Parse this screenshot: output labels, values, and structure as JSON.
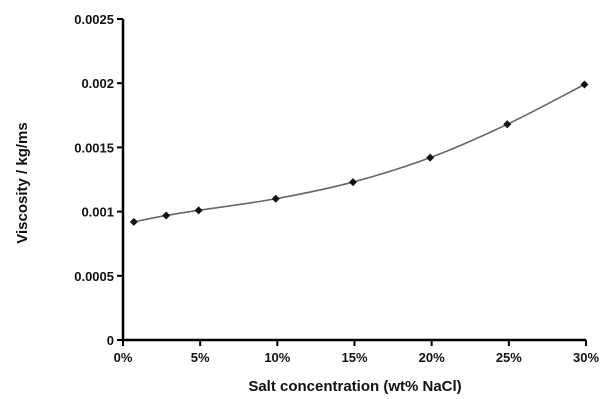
{
  "chart_data": {
    "type": "line",
    "title": "",
    "xlabel": "Salt concentration (wt% NaCl)",
    "ylabel": "Viscosity / kg/ms",
    "xlim": [
      0,
      30
    ],
    "ylim": [
      0,
      0.0025
    ],
    "x_ticks": [
      {
        "value": 0,
        "label": "0%"
      },
      {
        "value": 5,
        "label": "5%"
      },
      {
        "value": 10,
        "label": "10%"
      },
      {
        "value": 15,
        "label": "15%"
      },
      {
        "value": 20,
        "label": "20%"
      },
      {
        "value": 25,
        "label": "25%"
      },
      {
        "value": 30,
        "label": "30%"
      }
    ],
    "y_ticks": [
      {
        "value": 0,
        "label": "0"
      },
      {
        "value": 0.0005,
        "label": "0.0005"
      },
      {
        "value": 0.001,
        "label": "0.001"
      },
      {
        "value": 0.0015,
        "label": "0.0015"
      },
      {
        "value": 0.002,
        "label": "0.002"
      },
      {
        "value": 0.0025,
        "label": "0.0025"
      }
    ],
    "grid": false,
    "legend": "none",
    "line_color": "#666666",
    "marker_color": "#111111",
    "marker": "diamond",
    "series": [
      {
        "x": [
          0.7,
          2.8,
          4.9,
          9.9,
          14.9,
          19.9,
          24.9,
          29.9
        ],
        "y": [
          0.00092,
          0.00097,
          0.00101,
          0.0011,
          0.00123,
          0.00142,
          0.00168,
          0.00199
        ]
      }
    ]
  }
}
